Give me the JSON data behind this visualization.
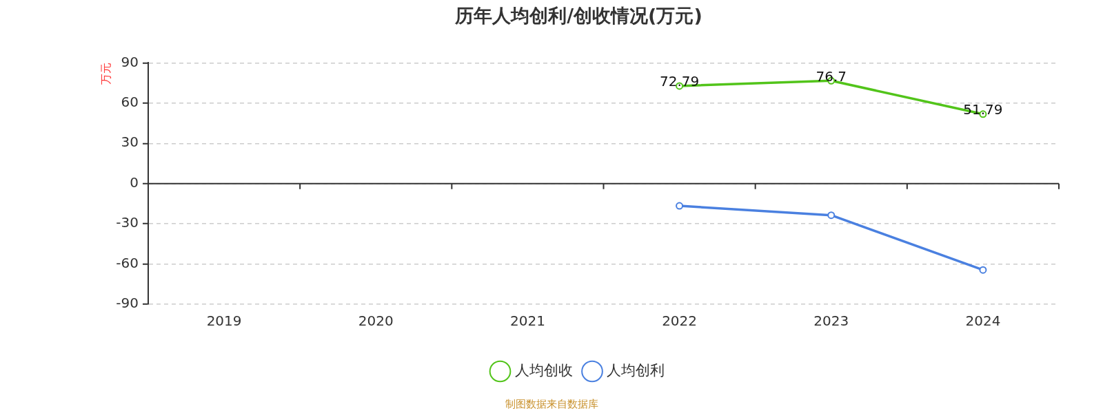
{
  "chart_data": {
    "type": "line",
    "title": "历年人均创利/创收情况(万元)",
    "ylabel": "万元",
    "categories": [
      "2019",
      "2020",
      "2021",
      "2022",
      "2023",
      "2024"
    ],
    "series": [
      {
        "name": "人均创收",
        "color": "#52c41a",
        "values": [
          null,
          null,
          null,
          72.79,
          76.7,
          51.79
        ],
        "value_labels": [
          null,
          null,
          null,
          "72.79",
          "76.7",
          "51.79"
        ]
      },
      {
        "name": "人均创利",
        "color": "#4a80e0",
        "values": [
          null,
          null,
          null,
          -16.6,
          -23.6,
          -64.4
        ]
      }
    ],
    "ylim": [
      -90,
      90
    ],
    "yticks": [
      -90,
      -60,
      -30,
      0,
      30,
      60,
      90
    ],
    "grid": "y",
    "legend": "bottom",
    "marker": "circle",
    "line_style": "solid",
    "annotations": [
      "制图数据来自数据库"
    ]
  }
}
